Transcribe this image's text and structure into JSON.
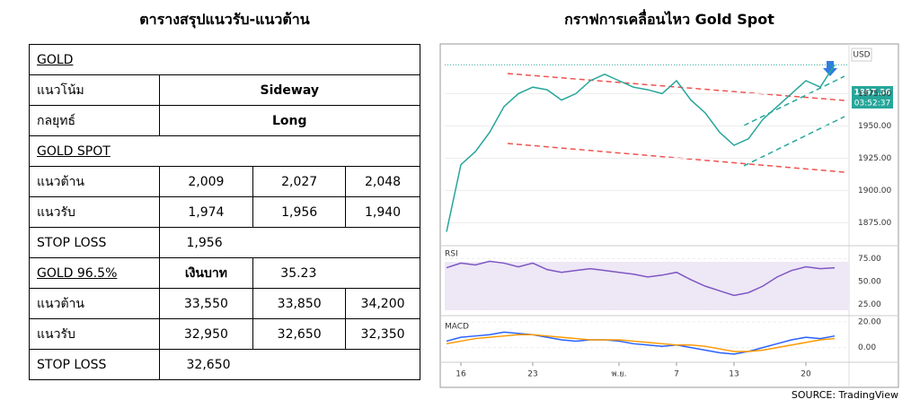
{
  "table": {
    "title": "ตารางสรุปแนวรับ-แนวต้าน",
    "rows": [
      [
        "GOLD"
      ],
      [
        "แนวโน้ม",
        "Sideway"
      ],
      [
        "กลยุทธ์",
        "Long"
      ],
      [
        "GOLD SPOT"
      ],
      [
        "แนวต้าน",
        "2,009",
        "2,027",
        "2,048"
      ],
      [
        "แนวรับ",
        "1,974",
        "1,956",
        "1,940"
      ],
      [
        "STOP LOSS",
        "1,956"
      ],
      [
        "GOLD 96.5%",
        "เงินบาท",
        "35.23"
      ],
      [
        "แนวต้าน",
        "33,550",
        "33,850",
        "34,200"
      ],
      [
        "แนวรับ",
        "32,950",
        "32,650",
        "32,350"
      ],
      [
        "STOP LOSS",
        "32,650"
      ]
    ]
  },
  "chart": {
    "title": "กราฟการเคลื่อนไหว Gold Spot",
    "currency": "USD",
    "last_price": {
      "value": 1997.36,
      "label": "1997.36"
    },
    "countdown": "03:52:37",
    "price": {
      "color": "#26a69a",
      "values": [
        1868,
        1920,
        1930,
        1945,
        1965,
        1975,
        1980,
        1978,
        1970,
        1975,
        1985,
        1990,
        1985,
        1980,
        1978,
        1975,
        1985,
        1970,
        1960,
        1945,
        1935,
        1940,
        1955,
        1965,
        1975,
        1985,
        1980,
        1997.36
      ]
    },
    "ylim": [
      1860,
      2010
    ],
    "yticks": [
      {
        "value": 1875,
        "label": "1875.00"
      },
      {
        "value": 1900,
        "label": "1900.00"
      },
      {
        "value": 1925,
        "label": "1925.00"
      },
      {
        "value": 1950,
        "label": "1950.00"
      },
      {
        "value": 1975,
        "label": "1975.00"
      }
    ],
    "rsi_label": "RSI",
    "rsi": {
      "color": "#7e57c2",
      "values": [
        65,
        70,
        68,
        72,
        70,
        66,
        70,
        63,
        60,
        62,
        64,
        62,
        60,
        58,
        55,
        57,
        60,
        52,
        45,
        40,
        35,
        38,
        45,
        55,
        62,
        66,
        64,
        65
      ]
    },
    "rsi_ylim": [
      15,
      85
    ],
    "rsi_yticks": [
      {
        "value": 25,
        "label": "25.00"
      },
      {
        "value": 50,
        "label": "50.00"
      },
      {
        "value": 75,
        "label": "75.00"
      }
    ],
    "macd_label": "MACD",
    "macd": {
      "color": "#2962ff",
      "values": [
        5,
        8,
        9,
        10,
        12,
        11,
        10,
        8,
        6,
        5,
        6,
        6,
        5,
        3,
        2,
        1,
        2,
        0,
        -2,
        -4,
        -5,
        -3,
        0,
        3,
        6,
        8,
        7,
        9
      ]
    },
    "macd_signal": {
      "color": "#ff9800",
      "values": [
        3,
        5,
        7,
        8,
        9,
        10,
        10,
        9,
        8,
        7,
        6,
        6,
        6,
        5,
        4,
        3,
        2,
        2,
        1,
        -1,
        -3,
        -3,
        -2,
        0,
        2,
        4,
        6,
        7
      ]
    },
    "macd_ylim": [
      -10,
      22
    ],
    "macd_yticks": [
      {
        "value": 0,
        "label": "0.00"
      },
      {
        "value": 20,
        "label": "20.00"
      }
    ],
    "x_ticks": [
      {
        "value": 1,
        "label": "16"
      },
      {
        "value": 6,
        "label": "23"
      },
      {
        "value": 12,
        "label": "พ.ย."
      },
      {
        "value": 16,
        "label": "7"
      },
      {
        "value": 20,
        "label": "13"
      },
      {
        "value": 25,
        "label": "20"
      }
    ]
  },
  "source": "SOURCE: TradingView"
}
